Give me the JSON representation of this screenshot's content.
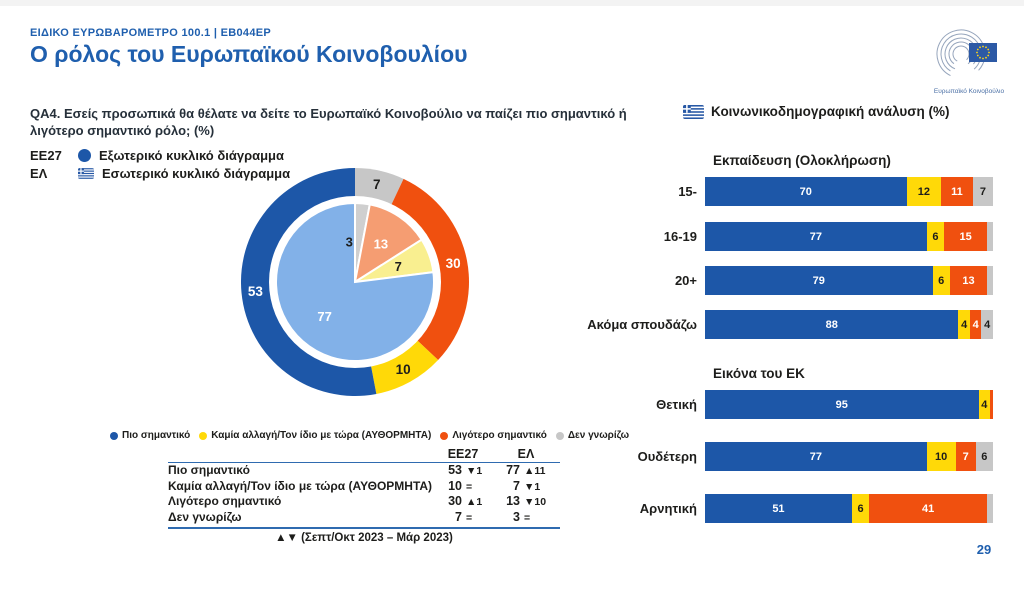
{
  "header": {
    "eyebrow": "ΕΙΔΙΚΟ ΕΥΡΩΒΑΡΟΜΕΤΡΟ 100.1 | EB044EP",
    "title": "Ο ρόλος του Ευρωπαϊκού Κοινοβουλίου",
    "logo_caption": "Ευρωπαϊκό Κοινοβούλιο"
  },
  "question": "QA4. Εσείς προσωπικά θα θέλατε να δείτε το Ευρωπαϊκό Κοινοβούλιο να παίζει πιο σημαντικό ή λιγότερο σημαντικό ρόλο; (%)",
  "sociodemo_header": "Κοινωνικοδημογραφική ανάλυση (%)",
  "ring_legend": [
    {
      "code": "ΕΕ27",
      "icon": "eu-dot",
      "label": "Εξωτερικό κυκλικό διάγραμμα"
    },
    {
      "code": "ΕΛ",
      "icon": "greek-flag",
      "label": "Εσωτερικό κυκλικό διάγραμμα"
    }
  ],
  "donut_legend": [
    {
      "label": "Πιο σημαντικό",
      "color": "#1d57a8"
    },
    {
      "label": "Καμία αλλαγή/Τον ίδιο με τώρα (ΑΥΘΟΡΜΗΤΑ)",
      "color": "#ffd908"
    },
    {
      "label": "Λιγότερο σημαντικό",
      "color": "#f0500f"
    },
    {
      "label": "Δεν γνωρίζω",
      "color": "#c7c7c7"
    }
  ],
  "colors": {
    "brand_blue": "#1f5fae",
    "bar_blue": "#1d57a8",
    "yellow": "#ffd908",
    "orange": "#f0500f",
    "gray": "#c7c7c7",
    "inner_blue": "#82b1e8",
    "inner_yellow": "#f9ef90",
    "inner_salmon": "#f59d72",
    "inner_gray": "#cfcfcf",
    "table_line": "#2f6bb0",
    "text_dark": "#1d1d1b"
  },
  "chart_data": [
    {
      "type": "pie",
      "order": "clockwise-from-top",
      "rings": [
        {
          "name": "ΕΕ27",
          "position": "outer",
          "slices": [
            {
              "label": "Δεν γνωρίζω",
              "value": 7,
              "color": "#c7c7c7",
              "label_color": "#1d1d1b"
            },
            {
              "label": "Λιγότερο σημαντικό",
              "value": 30,
              "color": "#f0500f",
              "label_color": "#ffffff"
            },
            {
              "label": "Καμία αλλαγή/Τον ίδιο με τώρα (ΑΥΘΟΡΜΗΤΑ)",
              "value": 10,
              "color": "#ffd908",
              "label_color": "#1d1d1b"
            },
            {
              "label": "Πιο σημαντικό",
              "value": 53,
              "color": "#1d57a8",
              "label_color": "#ffffff"
            }
          ]
        },
        {
          "name": "ΕΛ",
          "position": "inner",
          "slices": [
            {
              "label": "Δεν γνωρίζω",
              "value": 3,
              "color": "#cfcfcf",
              "label_color": "#1d1d1b"
            },
            {
              "label": "Λιγότερο σημαντικό",
              "value": 13,
              "color": "#f59d72",
              "label_color": "#ffffff"
            },
            {
              "label": "Καμία αλλαγή/Τον ίδιο με τώρα (ΑΥΘΟΡΜΗΤΑ)",
              "value": 7,
              "color": "#f9ef90",
              "label_color": "#1d1d1b"
            },
            {
              "label": "Πιο σημαντικό",
              "value": 77,
              "color": "#82b1e8",
              "label_color": "#ffffff"
            }
          ]
        }
      ]
    },
    {
      "type": "bar",
      "title": "Εκπαίδευση (Ολοκλήρωση)",
      "categories": [
        "15-",
        "16-19",
        "20+",
        "Ακόμα σπουδάζω"
      ],
      "series": [
        {
          "name": "Πιο σημαντικό",
          "color": "#1d57a8",
          "label_color": "#ffffff",
          "values": [
            70,
            77,
            79,
            88
          ]
        },
        {
          "name": "Καμία αλλαγή/Τον ίδιο με τώρα (ΑΥΘΟΡΜΗΤΑ)",
          "color": "#ffd908",
          "label_color": "#1d1d1b",
          "values": [
            12,
            6,
            6,
            4
          ]
        },
        {
          "name": "Λιγότερο σημαντικό",
          "color": "#f0500f",
          "label_color": "#ffffff",
          "values": [
            11,
            15,
            13,
            4
          ]
        },
        {
          "name": "Δεν γνωρίζω",
          "color": "#c7c7c7",
          "label_color": "#1d1d1b",
          "values": [
            7,
            2,
            2,
            4
          ]
        }
      ]
    },
    {
      "type": "bar",
      "title": "Εικόνα του ΕΚ",
      "categories": [
        "Θετική",
        "Ουδέτερη",
        "Αρνητική"
      ],
      "series": [
        {
          "name": "Πιο σημαντικό",
          "color": "#1d57a8",
          "label_color": "#ffffff",
          "values": [
            95,
            77,
            51
          ]
        },
        {
          "name": "Καμία αλλαγή/Τον ίδιο με τώρα (ΑΥΘΟΡΜΗΤΑ)",
          "color": "#ffd908",
          "label_color": "#1d1d1b",
          "values": [
            4,
            10,
            6
          ]
        },
        {
          "name": "Λιγότερο σημαντικό",
          "color": "#f0500f",
          "label_color": "#ffffff",
          "values": [
            1,
            7,
            41
          ]
        },
        {
          "name": "Δεν γνωρίζω",
          "color": "#c7c7c7",
          "label_color": "#1d1d1b",
          "values": [
            0,
            6,
            2
          ]
        }
      ]
    }
  ],
  "table": {
    "col_headers": [
      "ΕΕ27",
      "ΕΛ"
    ],
    "rows": [
      {
        "label": "Πιο σημαντικό",
        "ee27": "53",
        "ee27_change": "▼1",
        "el": "77",
        "el_change": "▲11"
      },
      {
        "label": "Καμία αλλαγή/Τον ίδιο με τώρα (ΑΥΘΟΡΜΗΤΑ)",
        "ee27": "10",
        "ee27_change": "=",
        "el": "7",
        "el_change": "▼1"
      },
      {
        "label": "Λιγότερο σημαντικό",
        "ee27": "30",
        "ee27_change": "▲1",
        "el": "13",
        "el_change": "▼10"
      },
      {
        "label": "Δεν γνωρίζω",
        "ee27": "7",
        "ee27_change": "=",
        "el": "3",
        "el_change": "="
      }
    ]
  },
  "footnote": "▲▼ (Σεπτ/Οκτ 2023 – Μάρ 2023)",
  "page_number": "29"
}
